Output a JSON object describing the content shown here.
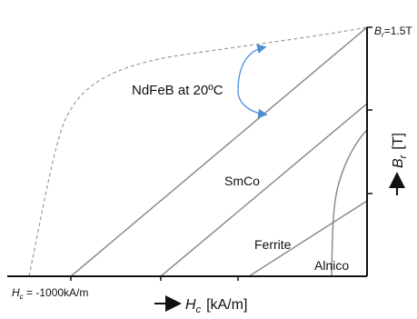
{
  "chart_data": {
    "type": "line",
    "title": "",
    "xlabel": "H",
    "xlabel_sub": "c",
    "xlabel_unit": "[kA/m]",
    "ylabel": "B",
    "ylabel_sub": "r",
    "ylabel_unit": "[T]",
    "annotations": {
      "br_label_main": "B",
      "br_label_sub": "r",
      "br_label_value": "=1.5T",
      "hc_label_main": "H",
      "hc_label_sub": "c",
      "hc_label_value": " = -1000kA/m",
      "ndfeb_label": "NdFeB at 20ºC"
    },
    "series": [
      {
        "name": "SmCo",
        "points": [
          [
            -1000,
            0
          ],
          [
            0,
            1.05
          ]
        ]
      },
      {
        "name": "Ferrite",
        "points": [
          [
            -400,
            0
          ],
          [
            0,
            0.4
          ]
        ]
      },
      {
        "name": "Alnico",
        "points": [
          [
            -130,
            0
          ],
          [
            -120,
            0.55
          ],
          [
            -80,
            0.95
          ],
          [
            -40,
            1.2
          ],
          [
            0,
            1.3
          ]
        ]
      }
    ],
    "colors": {
      "lines": "#8c8c8c",
      "dashed_curve": "#9a9a9a",
      "arrow": "#4a8fd6",
      "axis": "#111111"
    }
  }
}
